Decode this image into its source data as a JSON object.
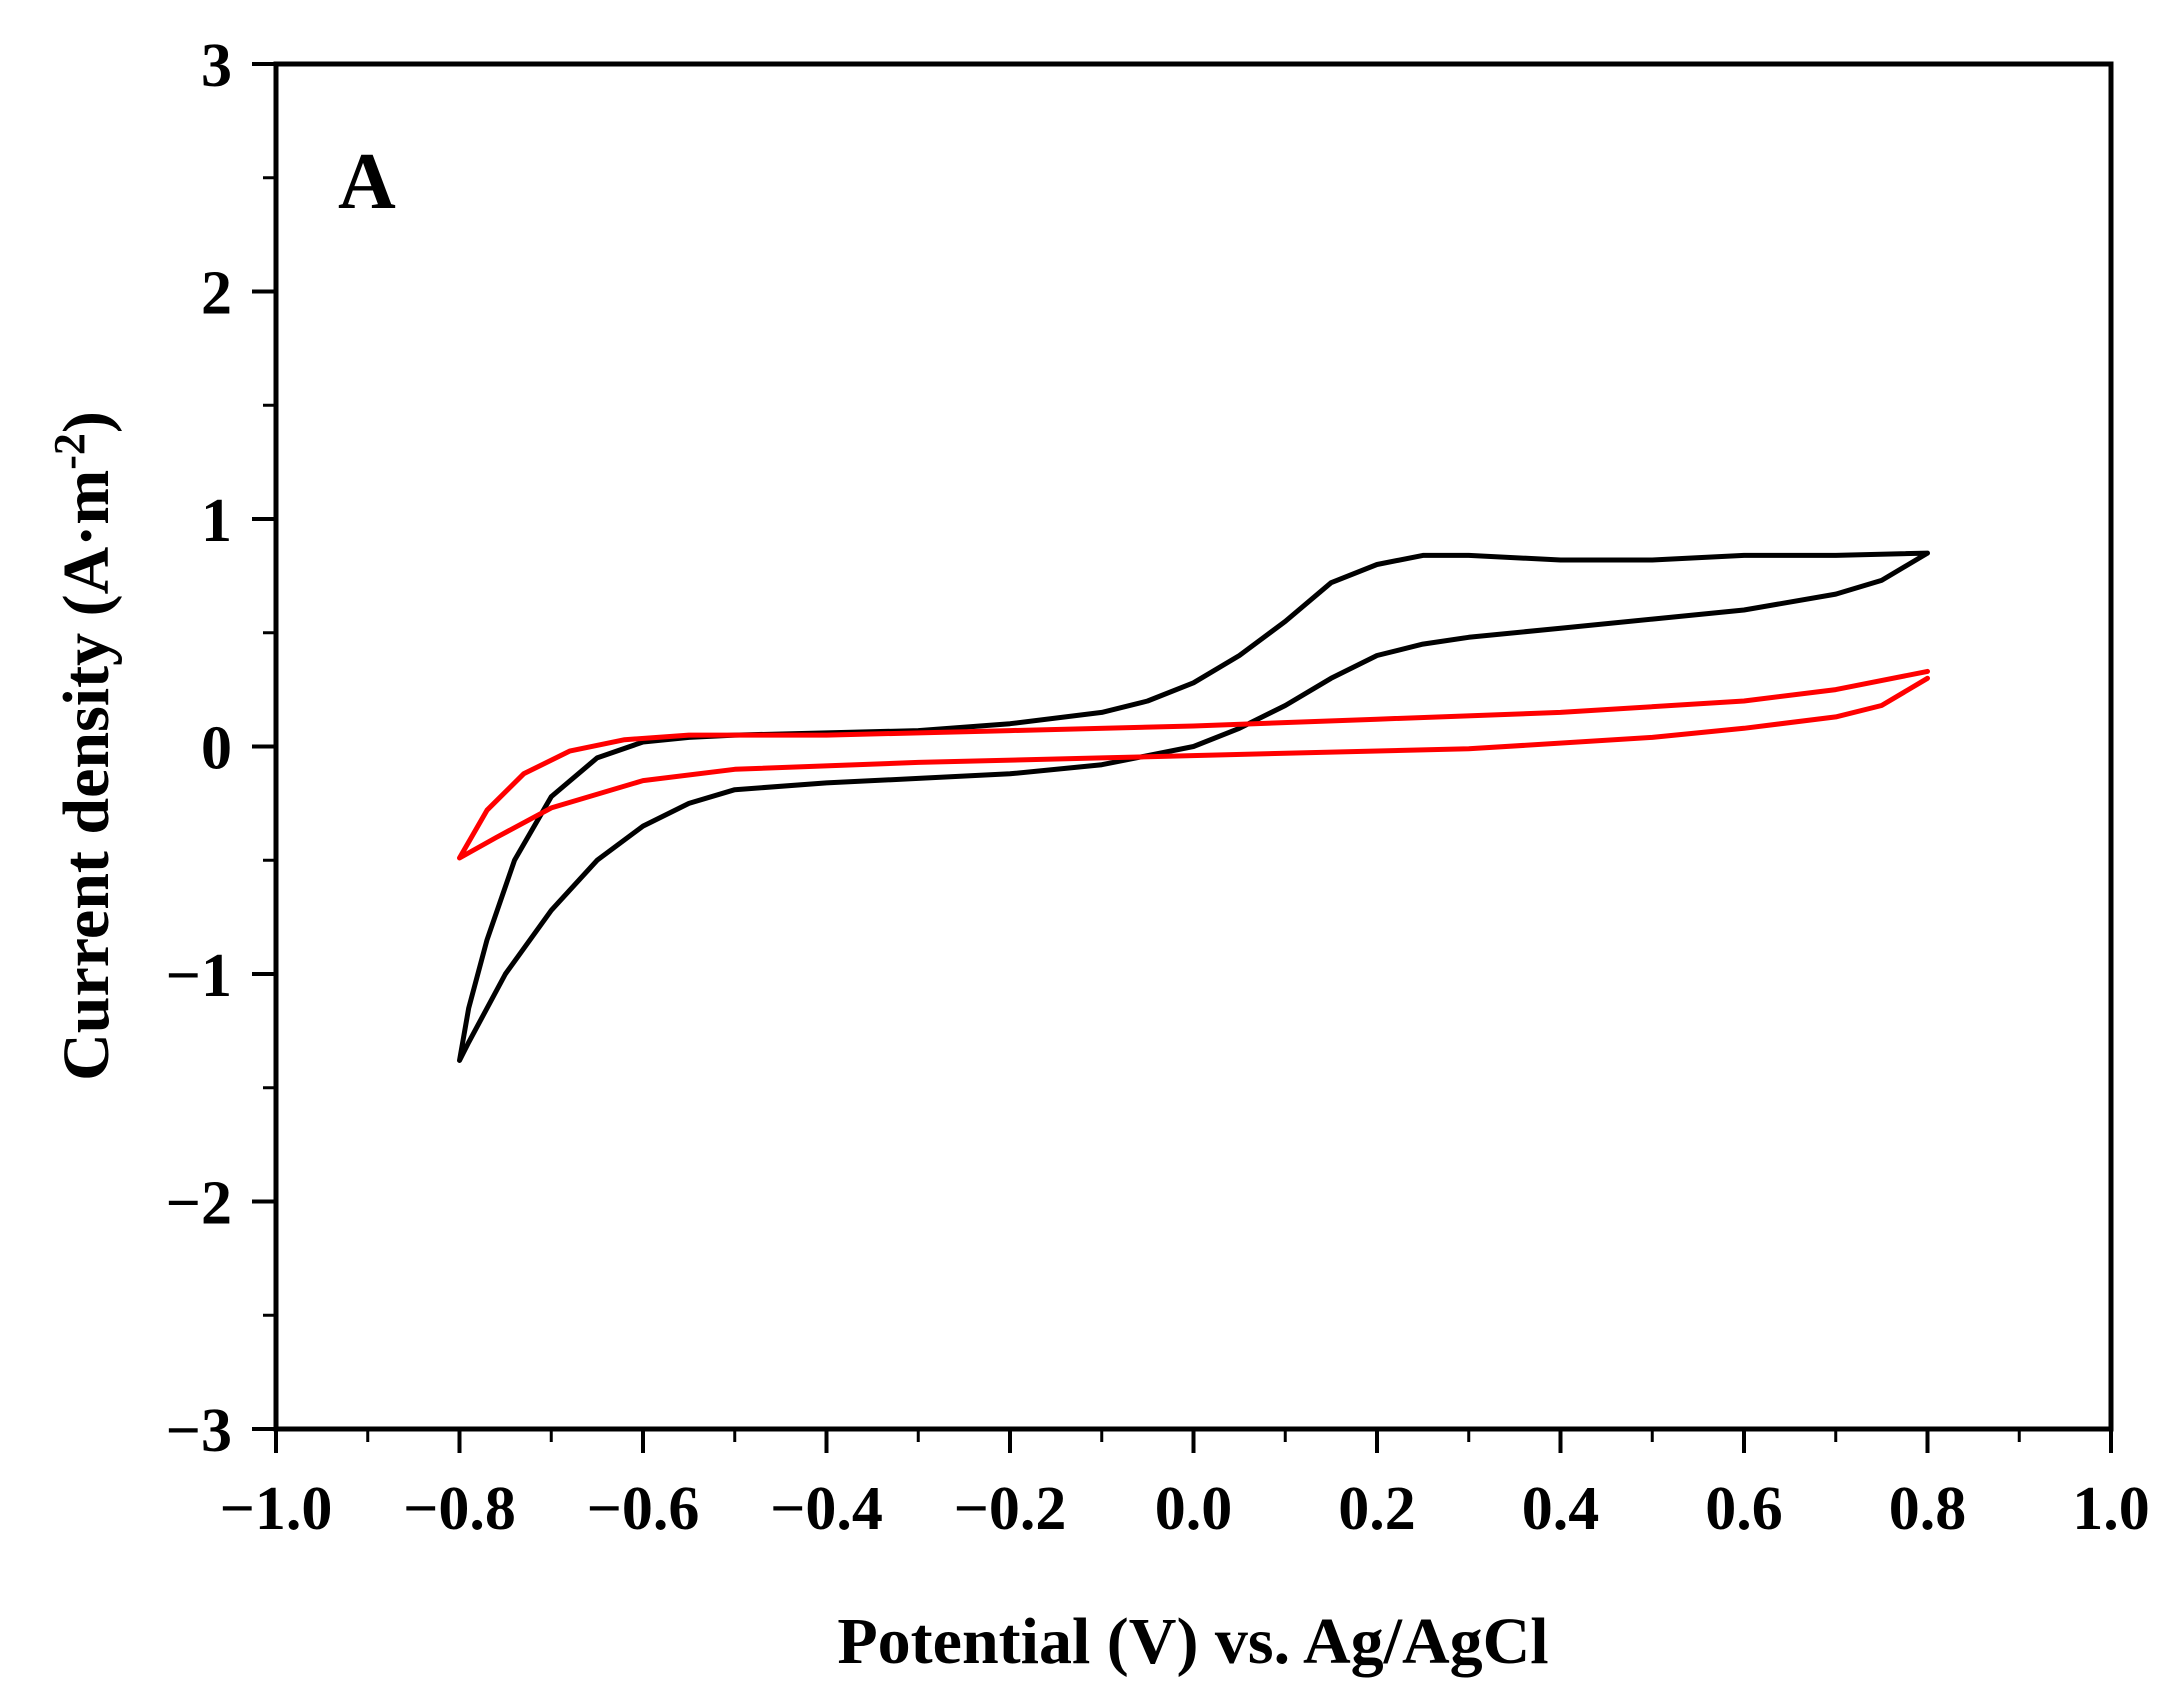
{
  "chart_data": {
    "type": "line",
    "title": "",
    "panel_label": "A",
    "xlabel": "Potential (V) vs. Ag/AgCl",
    "ylabel_main": "Current density (A·m",
    "ylabel_sup": "-2",
    "ylabel_close": ")",
    "xlim": [
      -1.0,
      1.0
    ],
    "ylim": [
      -3,
      3
    ],
    "x_ticks": [
      -1.0,
      -0.8,
      -0.6,
      -0.4,
      -0.2,
      0.0,
      0.2,
      0.4,
      0.6,
      0.8,
      1.0
    ],
    "x_tick_labels": [
      "−1.0",
      "−0.8",
      "−0.6",
      "−0.4",
      "−0.2",
      "0.0",
      "0.2",
      "0.4",
      "0.6",
      "0.8",
      "1.0"
    ],
    "y_ticks": [
      -3,
      -2,
      -1,
      0,
      1,
      2,
      3
    ],
    "y_tick_labels": [
      "−3",
      "−2",
      "−1",
      "0",
      "1",
      "2",
      "3"
    ],
    "grid": false,
    "series": [
      {
        "name": "black-cv",
        "color": "#000000",
        "points": [
          [
            0.8,
            0.85
          ],
          [
            0.7,
            0.84
          ],
          [
            0.6,
            0.84
          ],
          [
            0.5,
            0.82
          ],
          [
            0.4,
            0.82
          ],
          [
            0.3,
            0.84
          ],
          [
            0.25,
            0.84
          ],
          [
            0.2,
            0.8
          ],
          [
            0.15,
            0.72
          ],
          [
            0.1,
            0.55
          ],
          [
            0.05,
            0.4
          ],
          [
            0.0,
            0.28
          ],
          [
            -0.05,
            0.2
          ],
          [
            -0.1,
            0.15
          ],
          [
            -0.2,
            0.1
          ],
          [
            -0.3,
            0.07
          ],
          [
            -0.4,
            0.06
          ],
          [
            -0.5,
            0.05
          ],
          [
            -0.55,
            0.04
          ],
          [
            -0.6,
            0.02
          ],
          [
            -0.65,
            -0.05
          ],
          [
            -0.7,
            -0.22
          ],
          [
            -0.74,
            -0.5
          ],
          [
            -0.77,
            -0.85
          ],
          [
            -0.79,
            -1.15
          ],
          [
            -0.8,
            -1.38
          ],
          [
            -0.79,
            -1.3
          ],
          [
            -0.75,
            -1.0
          ],
          [
            -0.7,
            -0.72
          ],
          [
            -0.65,
            -0.5
          ],
          [
            -0.6,
            -0.35
          ],
          [
            -0.55,
            -0.25
          ],
          [
            -0.5,
            -0.19
          ],
          [
            -0.4,
            -0.16
          ],
          [
            -0.3,
            -0.14
          ],
          [
            -0.2,
            -0.12
          ],
          [
            -0.1,
            -0.08
          ],
          [
            0.0,
            0.0
          ],
          [
            0.05,
            0.08
          ],
          [
            0.1,
            0.18
          ],
          [
            0.15,
            0.3
          ],
          [
            0.2,
            0.4
          ],
          [
            0.25,
            0.45
          ],
          [
            0.3,
            0.48
          ],
          [
            0.4,
            0.52
          ],
          [
            0.5,
            0.56
          ],
          [
            0.6,
            0.6
          ],
          [
            0.7,
            0.67
          ],
          [
            0.75,
            0.73
          ],
          [
            0.8,
            0.85
          ]
        ]
      },
      {
        "name": "red-cv",
        "color": "#ff0000",
        "points": [
          [
            0.8,
            0.33
          ],
          [
            0.7,
            0.25
          ],
          [
            0.6,
            0.2
          ],
          [
            0.4,
            0.15
          ],
          [
            0.2,
            0.12
          ],
          [
            0.0,
            0.09
          ],
          [
            -0.2,
            0.07
          ],
          [
            -0.4,
            0.05
          ],
          [
            -0.55,
            0.05
          ],
          [
            -0.62,
            0.03
          ],
          [
            -0.68,
            -0.02
          ],
          [
            -0.73,
            -0.12
          ],
          [
            -0.77,
            -0.28
          ],
          [
            -0.8,
            -0.49
          ],
          [
            -0.76,
            -0.4
          ],
          [
            -0.7,
            -0.27
          ],
          [
            -0.6,
            -0.15
          ],
          [
            -0.5,
            -0.1
          ],
          [
            -0.3,
            -0.07
          ],
          [
            -0.1,
            -0.05
          ],
          [
            0.1,
            -0.03
          ],
          [
            0.3,
            -0.01
          ],
          [
            0.5,
            0.04
          ],
          [
            0.6,
            0.08
          ],
          [
            0.7,
            0.13
          ],
          [
            0.75,
            0.18
          ],
          [
            0.8,
            0.3
          ]
        ]
      }
    ]
  }
}
